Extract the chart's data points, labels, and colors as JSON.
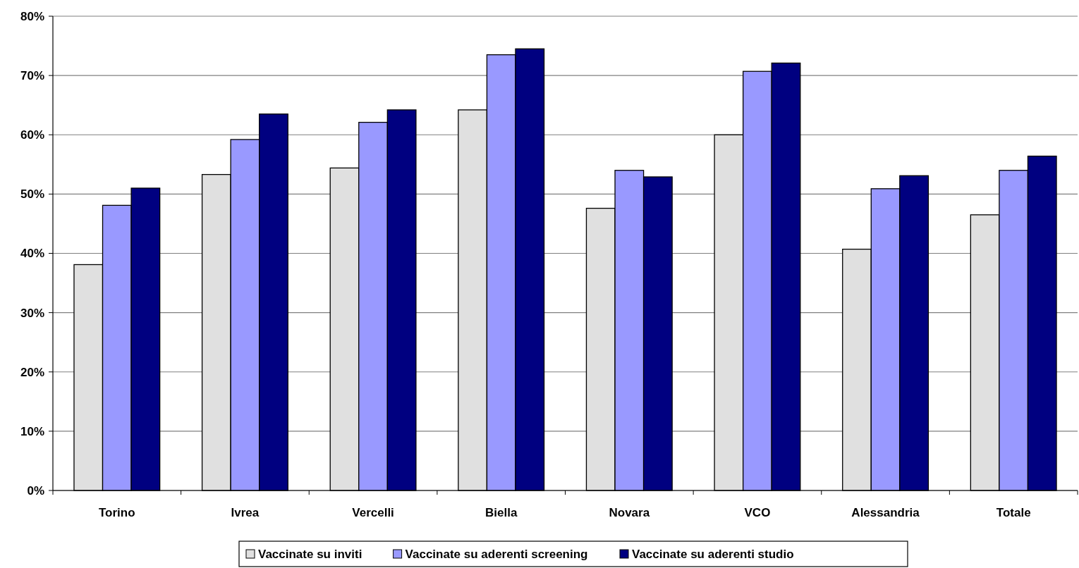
{
  "chart_data": {
    "type": "bar",
    "categories": [
      "Torino",
      "Ivrea",
      "Vercelli",
      "Biella",
      "Novara",
      "VCO",
      "Alessandria",
      "Totale"
    ],
    "series": [
      {
        "name": "Vaccinate su inviti",
        "color": "#e0e0e0",
        "values": [
          38.1,
          53.3,
          54.4,
          64.2,
          47.6,
          60.0,
          40.7,
          46.5
        ]
      },
      {
        "name": "Vaccinate su aderenti screening",
        "color": "#9999ff",
        "values": [
          48.1,
          59.2,
          62.1,
          73.5,
          54.0,
          70.7,
          50.9,
          54.0
        ]
      },
      {
        "name": "Vaccinate su aderenti studio",
        "color": "#000080",
        "values": [
          51.0,
          63.5,
          64.2,
          74.5,
          52.9,
          72.1,
          53.1,
          56.4
        ]
      }
    ],
    "ylim": [
      0,
      80
    ],
    "yticks": [
      {
        "value": 0,
        "label": "0%"
      },
      {
        "value": 10,
        "label": "10%"
      },
      {
        "value": 20,
        "label": "20%"
      },
      {
        "value": 30,
        "label": "30%"
      },
      {
        "value": 40,
        "label": "40%"
      },
      {
        "value": 50,
        "label": "50%"
      },
      {
        "value": 60,
        "label": "60%"
      },
      {
        "value": 70,
        "label": "70%"
      },
      {
        "value": 80,
        "label": "80%"
      }
    ],
    "grid": "y",
    "legend": "bottom"
  }
}
